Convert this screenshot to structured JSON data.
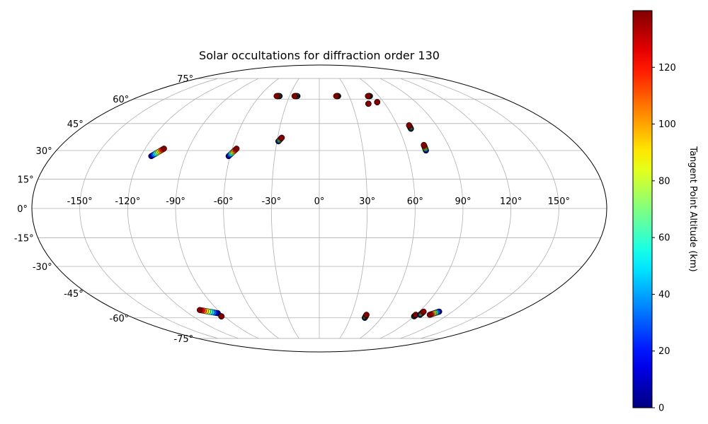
{
  "chart_data": {
    "type": "scatter",
    "projection": "mollweide",
    "title": "Solar occultations for diffraction order 130",
    "xlabel": "",
    "ylabel": "",
    "grid": true,
    "lon_ticks": [
      "-150°",
      "-120°",
      "-90°",
      "-60°",
      "-30°",
      "0°",
      "30°",
      "60°",
      "90°",
      "120°",
      "150°"
    ],
    "lat_ticks": [
      "75°",
      "60°",
      "45°",
      "30°",
      "15°",
      "0°",
      "-15°",
      "-30°",
      "-45°",
      "-60°",
      "-75°"
    ],
    "colorbar": {
      "label": "Tangent Point Altitude (km)",
      "range": [
        0,
        140
      ],
      "ticks": [
        "0",
        "20",
        "40",
        "60",
        "80",
        "100",
        "120"
      ],
      "colormap": "jet"
    },
    "series": [
      {
        "lon_start": -113,
        "lat_start": 27,
        "lon_end": -107,
        "lat_end": 31
      },
      {
        "lon_start": -61,
        "lat_start": 27,
        "lon_end": -57,
        "lat_end": 31
      },
      {
        "lon_start": -29,
        "lat_start": 35,
        "lon_end": -27,
        "lat_end": 37
      },
      {
        "lon_start": -40,
        "lat_start": 62,
        "lon_end": -43,
        "lat_end": 62
      },
      {
        "lon_start": -22,
        "lat_start": 62,
        "lon_end": -25,
        "lat_end": 62
      },
      {
        "lon_start": 19,
        "lat_start": 62,
        "lon_end": 17,
        "lat_end": 62
      },
      {
        "lon_start": 51,
        "lat_start": 62,
        "lon_end": 49,
        "lat_end": 62
      },
      {
        "lon_start": 45,
        "lat_start": 57,
        "lon_end": 45,
        "lat_end": 57
      },
      {
        "lon_start": 54,
        "lat_start": 58,
        "lon_end": 54,
        "lat_end": 58
      },
      {
        "lon_start": 69,
        "lat_start": 42,
        "lon_end": 69,
        "lat_end": 44
      },
      {
        "lon_start": 73,
        "lat_start": 30,
        "lon_end": 73,
        "lat_end": 33
      },
      {
        "lon_start": -93,
        "lat_start": -57,
        "lon_end": -106,
        "lat_end": -55
      },
      {
        "lon_start": -93,
        "lat_start": -59,
        "lon_end": -93,
        "lat_end": -59
      },
      {
        "lon_start": 44,
        "lat_start": -60,
        "lon_end": 44,
        "lat_end": -58
      },
      {
        "lon_start": 90,
        "lat_start": -59,
        "lon_end": 90,
        "lat_end": -58
      },
      {
        "lon_start": 94,
        "lat_start": -58,
        "lon_end": 94,
        "lat_end": -56
      },
      {
        "lon_start": 108,
        "lat_start": -56,
        "lon_end": 103,
        "lat_end": -58
      }
    ]
  }
}
